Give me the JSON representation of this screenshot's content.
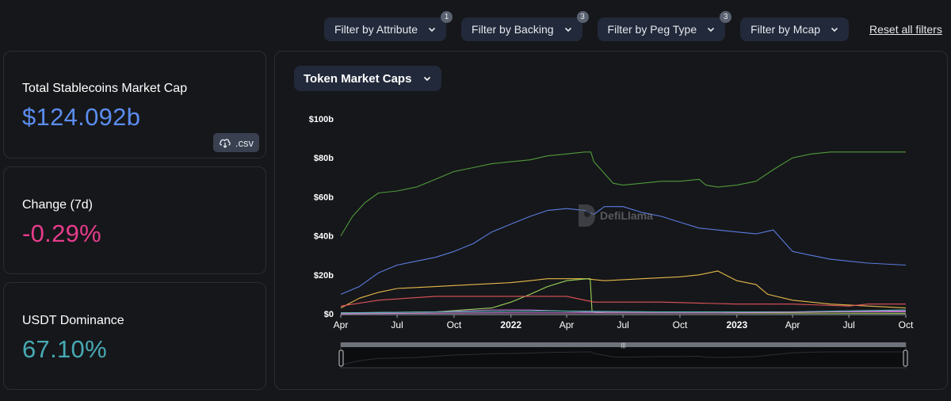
{
  "filters": [
    {
      "label": "Filter by Attribute",
      "badge": "1"
    },
    {
      "label": "Filter by Backing",
      "badge": "3"
    },
    {
      "label": "Filter by Peg Type",
      "badge": "3"
    },
    {
      "label": "Filter by Mcap",
      "badge": ""
    }
  ],
  "reset_label": "Reset all filters",
  "stats": {
    "total": {
      "label": "Total Stablecoins Market Cap",
      "value": "$124.092b",
      "color": "#5b8def"
    },
    "change": {
      "label": "Change (7d)",
      "value": "-0.29%",
      "color": "#e63c8c"
    },
    "dominance": {
      "label": "USDT Dominance",
      "value": "67.10%",
      "color": "#46aab4"
    },
    "csv_label": ".csv"
  },
  "chart_select_label": "Token Market Caps",
  "watermark_text": "DefiLlama",
  "chart_data": {
    "type": "line",
    "title": "",
    "y_ticks": [
      "$0",
      "$20b",
      "$40b",
      "$60b",
      "$80b",
      "$100b"
    ],
    "ylim": [
      0,
      100
    ],
    "y_unit": "billion USD",
    "xlim": [
      "2021-04-01",
      "2023-10-01"
    ],
    "x_ticks": [
      {
        "label": "Apr",
        "date": "2021-04-01",
        "bold": false
      },
      {
        "label": "Jul",
        "date": "2021-07-01",
        "bold": false
      },
      {
        "label": "Oct",
        "date": "2021-10-01",
        "bold": false
      },
      {
        "label": "2022",
        "date": "2022-01-01",
        "bold": true
      },
      {
        "label": "Apr",
        "date": "2022-04-01",
        "bold": false
      },
      {
        "label": "Jul",
        "date": "2022-07-01",
        "bold": false
      },
      {
        "label": "Oct",
        "date": "2022-10-01",
        "bold": false
      },
      {
        "label": "2023",
        "date": "2023-01-01",
        "bold": true
      },
      {
        "label": "Apr",
        "date": "2023-04-01",
        "bold": false
      },
      {
        "label": "Jul",
        "date": "2023-07-01",
        "bold": false
      },
      {
        "label": "Oct",
        "date": "2023-10-01",
        "bold": false
      }
    ],
    "grid": false,
    "legend": "none",
    "series": [
      {
        "color": "#4e9a3c",
        "points": [
          [
            "2021-04-01",
            40
          ],
          [
            "2021-04-20",
            50
          ],
          [
            "2021-05-10",
            57
          ],
          [
            "2021-06-01",
            62
          ],
          [
            "2021-07-01",
            63
          ],
          [
            "2021-08-01",
            65
          ],
          [
            "2021-09-01",
            69
          ],
          [
            "2021-10-01",
            73
          ],
          [
            "2021-11-01",
            75
          ],
          [
            "2021-12-01",
            77
          ],
          [
            "2022-01-01",
            78
          ],
          [
            "2022-02-01",
            79
          ],
          [
            "2022-03-01",
            81
          ],
          [
            "2022-04-01",
            82
          ],
          [
            "2022-04-30",
            83
          ],
          [
            "2022-05-10",
            83
          ],
          [
            "2022-05-15",
            78
          ],
          [
            "2022-06-01",
            72
          ],
          [
            "2022-06-15",
            67
          ],
          [
            "2022-07-01",
            66
          ],
          [
            "2022-08-01",
            67
          ],
          [
            "2022-09-01",
            68
          ],
          [
            "2022-10-01",
            68
          ],
          [
            "2022-11-01",
            69
          ],
          [
            "2022-11-12",
            66
          ],
          [
            "2022-12-01",
            65
          ],
          [
            "2023-01-01",
            66
          ],
          [
            "2023-02-01",
            68
          ],
          [
            "2023-03-01",
            74
          ],
          [
            "2023-04-01",
            80
          ],
          [
            "2023-05-01",
            82
          ],
          [
            "2023-06-01",
            83
          ],
          [
            "2023-07-01",
            83
          ],
          [
            "2023-08-01",
            83
          ],
          [
            "2023-10-01",
            83
          ]
        ]
      },
      {
        "color": "#5b7be0",
        "points": [
          [
            "2021-04-01",
            10
          ],
          [
            "2021-05-01",
            14
          ],
          [
            "2021-06-01",
            21
          ],
          [
            "2021-07-01",
            25
          ],
          [
            "2021-08-01",
            27
          ],
          [
            "2021-09-01",
            29
          ],
          [
            "2021-10-01",
            32
          ],
          [
            "2021-11-01",
            36
          ],
          [
            "2021-12-01",
            42
          ],
          [
            "2022-01-01",
            46
          ],
          [
            "2022-02-01",
            50
          ],
          [
            "2022-03-01",
            53
          ],
          [
            "2022-04-01",
            54
          ],
          [
            "2022-05-01",
            53
          ],
          [
            "2022-05-15",
            51
          ],
          [
            "2022-06-01",
            55
          ],
          [
            "2022-07-01",
            55
          ],
          [
            "2022-08-01",
            52
          ],
          [
            "2022-09-01",
            50
          ],
          [
            "2022-10-01",
            47
          ],
          [
            "2022-11-01",
            44
          ],
          [
            "2022-12-01",
            43
          ],
          [
            "2023-01-01",
            42
          ],
          [
            "2023-02-01",
            41
          ],
          [
            "2023-03-01",
            43
          ],
          [
            "2023-03-15",
            38
          ],
          [
            "2023-04-01",
            32
          ],
          [
            "2023-05-01",
            30
          ],
          [
            "2023-06-01",
            28
          ],
          [
            "2023-07-01",
            27
          ],
          [
            "2023-08-01",
            26
          ],
          [
            "2023-10-01",
            25
          ]
        ]
      },
      {
        "color": "#e6b94a",
        "points": [
          [
            "2021-04-01",
            3
          ],
          [
            "2021-05-01",
            8
          ],
          [
            "2021-06-01",
            11
          ],
          [
            "2021-07-01",
            13
          ],
          [
            "2021-09-01",
            14
          ],
          [
            "2021-11-01",
            15
          ],
          [
            "2022-01-01",
            16
          ],
          [
            "2022-02-01",
            17
          ],
          [
            "2022-03-01",
            18
          ],
          [
            "2022-05-01",
            18
          ],
          [
            "2022-06-01",
            17
          ],
          [
            "2022-08-01",
            18
          ],
          [
            "2022-10-01",
            19
          ],
          [
            "2022-11-01",
            20
          ],
          [
            "2022-12-01",
            22
          ],
          [
            "2023-01-01",
            17
          ],
          [
            "2023-02-01",
            15
          ],
          [
            "2023-02-20",
            10
          ],
          [
            "2023-04-01",
            7
          ],
          [
            "2023-06-01",
            5
          ],
          [
            "2023-08-01",
            4
          ],
          [
            "2023-10-01",
            3
          ]
        ]
      },
      {
        "color": "#9ad45a",
        "points": [
          [
            "2021-04-01",
            0.5
          ],
          [
            "2021-09-01",
            1
          ],
          [
            "2021-12-01",
            3
          ],
          [
            "2022-01-01",
            6
          ],
          [
            "2022-02-01",
            10
          ],
          [
            "2022-03-01",
            14
          ],
          [
            "2022-04-01",
            17
          ],
          [
            "2022-05-05",
            18
          ],
          [
            "2022-05-09",
            18
          ],
          [
            "2022-05-12",
            1
          ],
          [
            "2022-06-01",
            0.5
          ],
          [
            "2023-10-01",
            0.3
          ]
        ]
      },
      {
        "color": "#e0545c",
        "points": [
          [
            "2021-04-01",
            4
          ],
          [
            "2021-06-01",
            7
          ],
          [
            "2021-09-01",
            9
          ],
          [
            "2022-01-01",
            9
          ],
          [
            "2022-04-01",
            9
          ],
          [
            "2022-05-15",
            6
          ],
          [
            "2022-09-01",
            6
          ],
          [
            "2023-01-01",
            5
          ],
          [
            "2023-04-01",
            5
          ],
          [
            "2023-07-01",
            4
          ],
          [
            "2023-08-01",
            5
          ],
          [
            "2023-10-01",
            5
          ]
        ]
      },
      {
        "color": "#b565c8",
        "points": [
          [
            "2021-04-01",
            0.3
          ],
          [
            "2021-09-01",
            1
          ],
          [
            "2021-12-01",
            2
          ],
          [
            "2022-02-01",
            2
          ],
          [
            "2022-05-01",
            1
          ],
          [
            "2022-10-01",
            1
          ],
          [
            "2023-04-01",
            1
          ],
          [
            "2023-10-01",
            1
          ]
        ]
      },
      {
        "color": "#4fb8b0",
        "points": [
          [
            "2021-04-01",
            0.5
          ],
          [
            "2021-10-01",
            1
          ],
          [
            "2022-03-01",
            1.5
          ],
          [
            "2022-09-01",
            1
          ],
          [
            "2023-04-01",
            1
          ],
          [
            "2023-10-01",
            2
          ]
        ]
      },
      {
        "color": "#d07ad0",
        "points": [
          [
            "2021-04-01",
            0.1
          ],
          [
            "2022-01-01",
            0.5
          ],
          [
            "2022-12-01",
            0.5
          ],
          [
            "2023-06-01",
            1
          ],
          [
            "2023-10-01",
            1.5
          ]
        ]
      }
    ]
  }
}
